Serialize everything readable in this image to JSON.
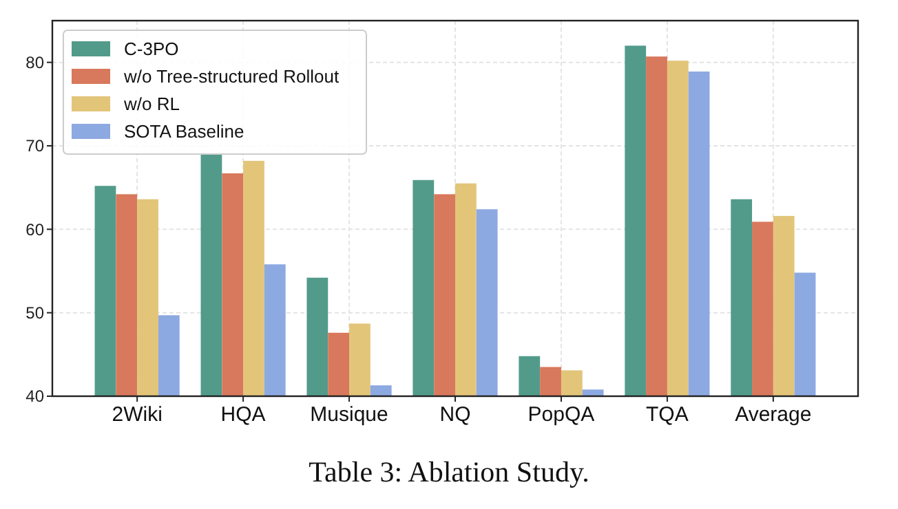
{
  "chart_data": {
    "type": "bar",
    "categories": [
      "2Wiki",
      "HQA",
      "Musique",
      "NQ",
      "PopQA",
      "TQA",
      "Average"
    ],
    "series": [
      {
        "name": "C-3PO",
        "color": "#529b8b",
        "values": [
          65.2,
          69.0,
          54.2,
          65.9,
          44.8,
          82.0,
          63.6
        ]
      },
      {
        "name": "w/o Tree-structured Rollout",
        "color": "#d8785c",
        "values": [
          64.2,
          66.7,
          47.6,
          64.2,
          43.5,
          80.7,
          60.9
        ]
      },
      {
        "name": "w/o RL",
        "color": "#e3c57a",
        "values": [
          63.6,
          68.2,
          48.7,
          65.5,
          43.1,
          80.2,
          61.6
        ]
      },
      {
        "name": "SOTA Baseline",
        "color": "#8da9e2",
        "values": [
          49.7,
          55.8,
          41.3,
          62.4,
          40.8,
          78.9,
          54.8
        ]
      }
    ],
    "ylim": [
      40,
      85
    ],
    "yticks": [
      40,
      50,
      60,
      70,
      80
    ],
    "grid": true,
    "legend": "top left",
    "annotations": [
      "Table 3: Ablation Study."
    ]
  }
}
